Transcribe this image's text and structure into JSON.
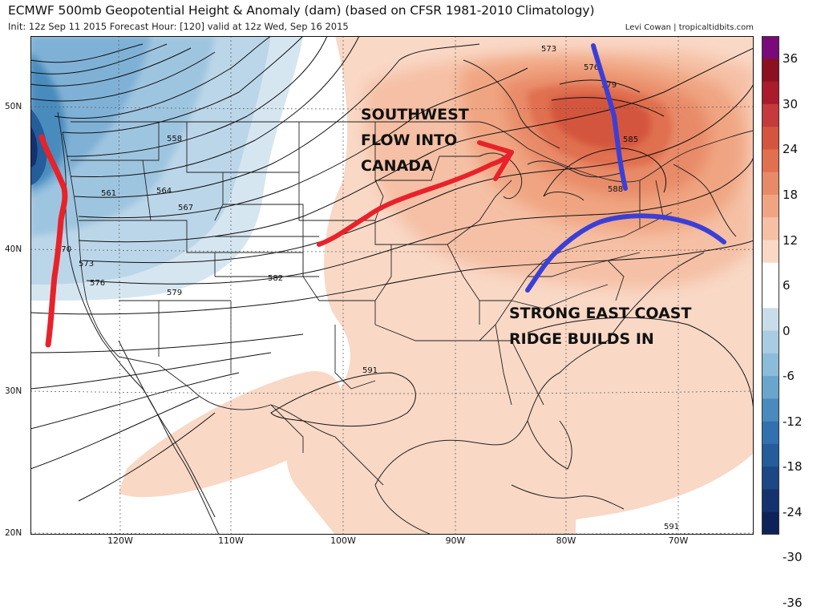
{
  "header": {
    "title": "ECMWF 500mb Geopotential Height & Anomaly (dam) (based on CFSR 1981-2010 Climatology)",
    "subtitle": "Init: 12z Sep 11 2015   Forecast Hour: [120]   valid at 12z Wed, Sep 16 2015",
    "credit": "Levi Cowan | tropicaltidbits.com"
  },
  "axes": {
    "lat_labels": [
      "50N",
      "40N",
      "30N",
      "20N"
    ],
    "lon_labels": [
      "120W",
      "110W",
      "100W",
      "90W",
      "80W",
      "70W"
    ]
  },
  "colorbar": {
    "ticks": [
      "36",
      "30",
      "24",
      "18",
      "12",
      "6",
      "0",
      "-6",
      "-12",
      "-18",
      "-24",
      "-30",
      "-36"
    ],
    "colors": [
      "#7a0a7a",
      "#8b1020",
      "#a81c2c",
      "#c53a3a",
      "#d4553e",
      "#e0704f",
      "#e88a67",
      "#f0a582",
      "#f5c0a5",
      "#f9d8c6",
      "#ffffff",
      "#ffffff",
      "#c9dcea",
      "#a9cce3",
      "#8bbcd9",
      "#6aa6cc",
      "#4a8bbd",
      "#3271ad",
      "#255c9a",
      "#1c4785",
      "#14336e",
      "#0e2258"
    ]
  },
  "contour_labels": [
    "558",
    "561",
    "564",
    "567",
    "570",
    "573",
    "576",
    "579",
    "582",
    "585",
    "588",
    "591",
    "591",
    "573",
    "576",
    "579"
  ],
  "annotations": {
    "southwest_flow": [
      "SOUTHWEST",
      "FLOW INTO",
      "CANADA"
    ],
    "east_coast": [
      "STRONG EAST COAST",
      "RIDGE BUILDS IN"
    ]
  },
  "colors": {
    "trough_line": "#e8222a",
    "ridge_line": "#3b3fd6",
    "flow_arrow": "#e8222a"
  }
}
